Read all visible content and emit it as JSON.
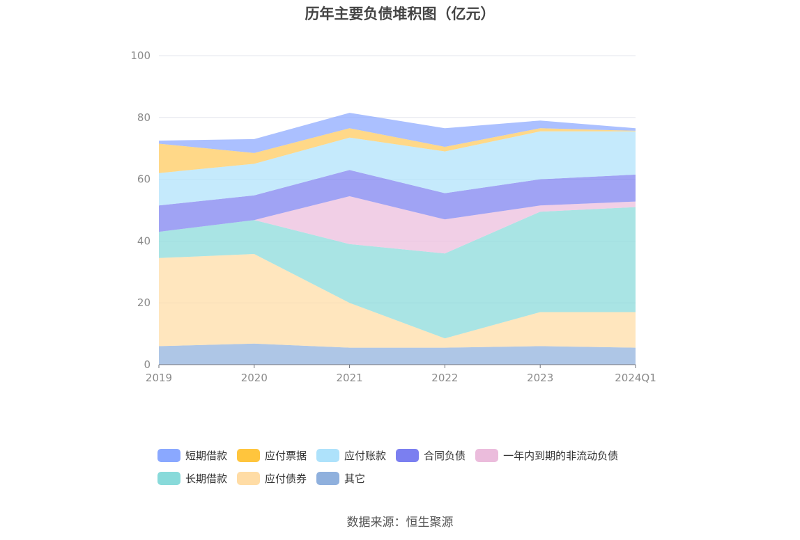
{
  "title": "历年主要负债堆积图（亿元）",
  "source": "数据来源：恒生聚源",
  "chart_data": {
    "type": "area",
    "stacked": true,
    "categories": [
      "2019",
      "2020",
      "2021",
      "2022",
      "2023",
      "2024Q1"
    ],
    "ylim": [
      0,
      100
    ],
    "yticks": [
      0,
      20,
      40,
      60,
      80,
      100
    ],
    "grid": true,
    "legend_position": "bottom",
    "series": [
      {
        "name": "其它",
        "color": "#8fb0dd",
        "values": [
          6.0,
          6.8,
          5.5,
          5.5,
          6.0,
          5.5
        ]
      },
      {
        "name": "应付债券",
        "color": "#ffdca5",
        "values": [
          28.5,
          29.0,
          14.5,
          3.0,
          11.0,
          11.5
        ]
      },
      {
        "name": "长期借款",
        "color": "#88dada",
        "values": [
          8.5,
          11.0,
          19.0,
          27.5,
          32.5,
          34.0
        ]
      },
      {
        "name": "一年内到期的非流动负债",
        "color": "#ebbcdc",
        "values": [
          0.0,
          0.0,
          15.5,
          11.0,
          2.0,
          1.8
        ]
      },
      {
        "name": "合同负债",
        "color": "#7b7ff0",
        "values": [
          8.5,
          8.0,
          8.5,
          8.5,
          8.5,
          8.7
        ]
      },
      {
        "name": "应付账款",
        "color": "#aee2fb",
        "values": [
          10.5,
          10.2,
          10.5,
          13.5,
          15.5,
          14.0
        ]
      },
      {
        "name": "应付票据",
        "color": "#ffc95a",
        "values": [
          9.5,
          3.5,
          3.0,
          1.5,
          1.0,
          0.2
        ]
      },
      {
        "name": "短期借款",
        "color": "#8aa8ff",
        "values": [
          1.0,
          4.5,
          5.0,
          6.0,
          2.5,
          0.8
        ]
      }
    ]
  },
  "legend": {
    "rows": [
      [
        {
          "label": "短期借款",
          "color": "#8aa8ff"
        },
        {
          "label": "应付票据",
          "color": "#ffc53d"
        },
        {
          "label": "应付账款",
          "color": "#aee2fb"
        },
        {
          "label": "合同负债",
          "color": "#7b7ff0"
        },
        {
          "label": "一年内到期的非流动负债",
          "color": "#ebbcdc"
        }
      ],
      [
        {
          "label": "长期借款",
          "color": "#88dada"
        },
        {
          "label": "应付债券",
          "color": "#ffdca5"
        },
        {
          "label": "其它",
          "color": "#8fb0dd"
        }
      ]
    ]
  }
}
